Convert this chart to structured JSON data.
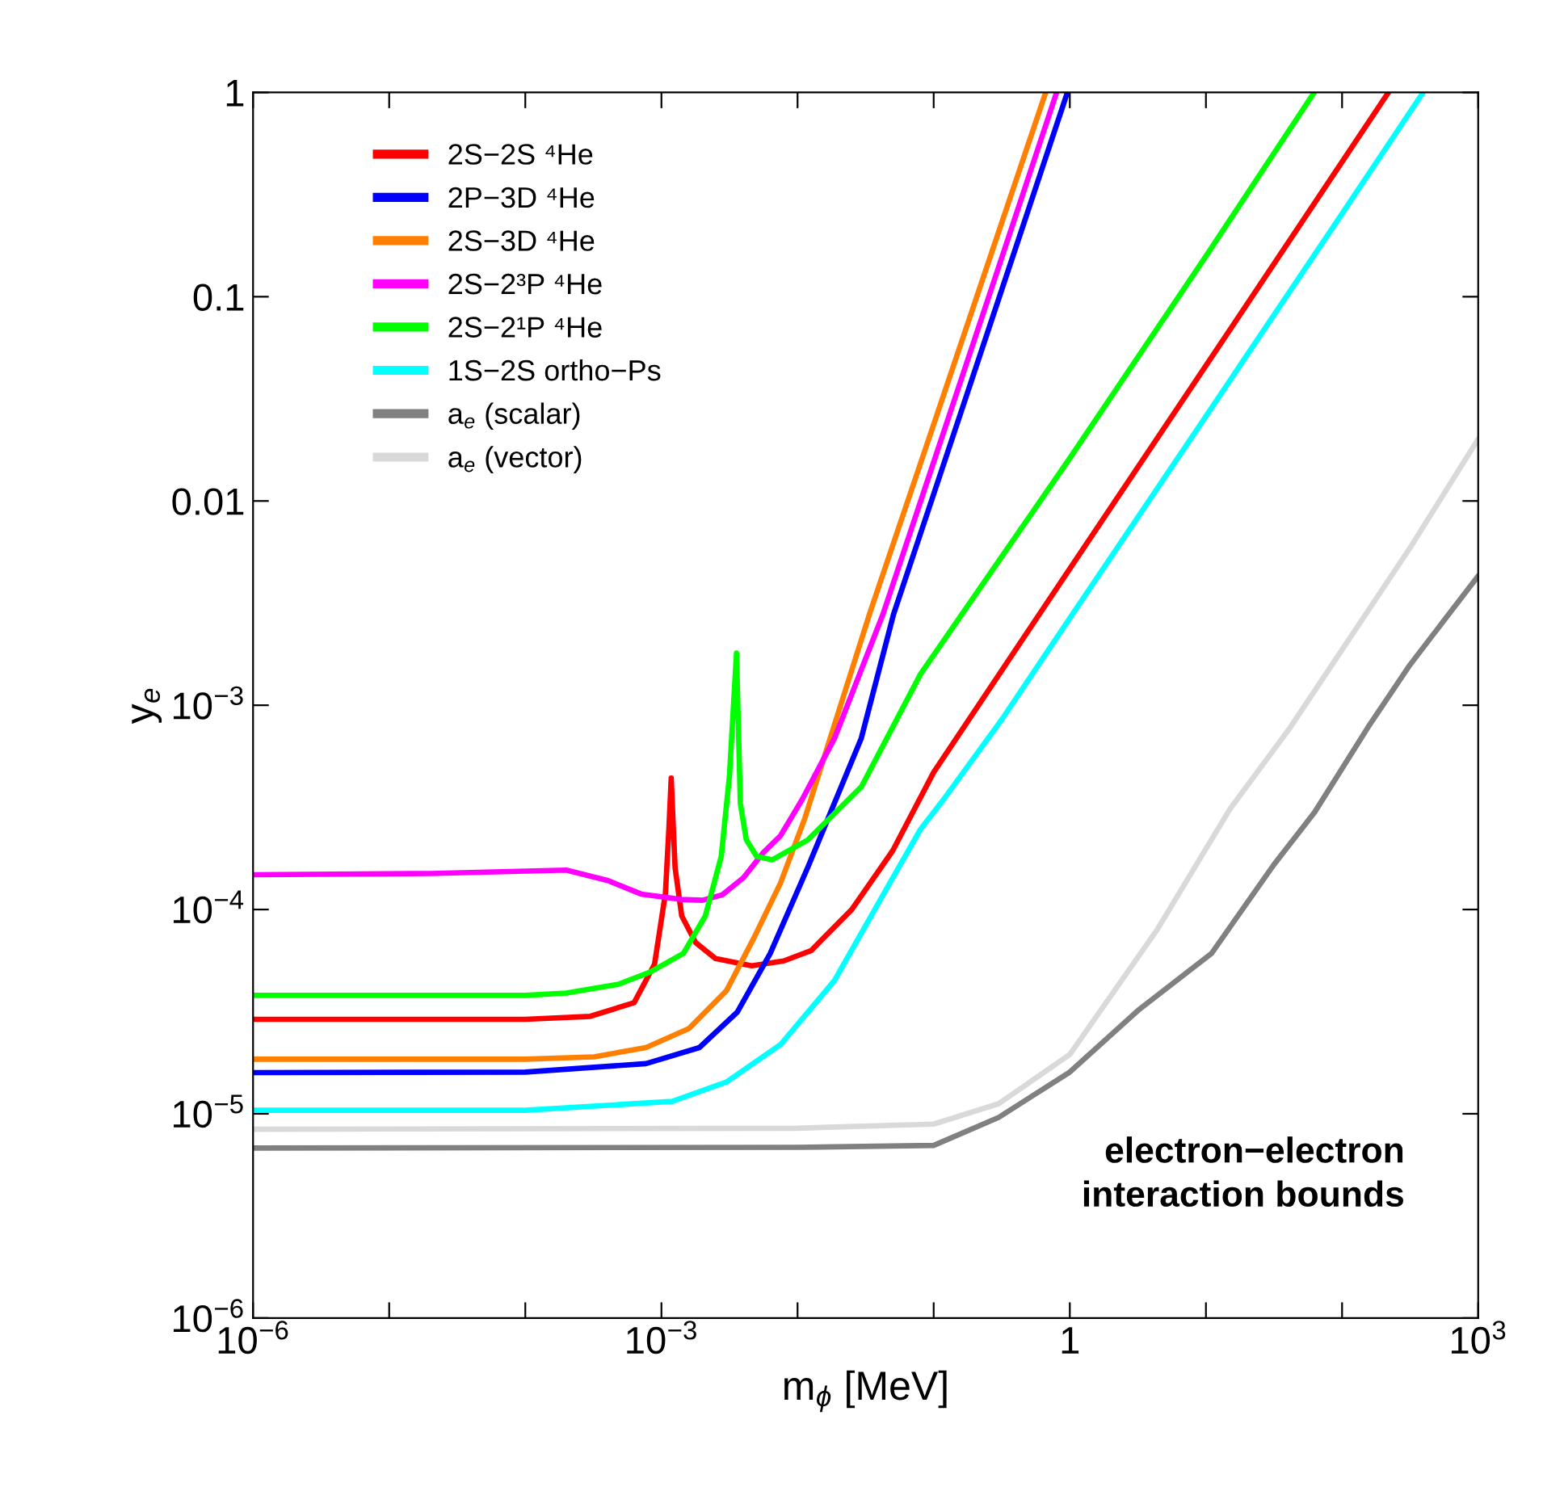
{
  "chart_data": {
    "type": "line",
    "xlabel": "m$_{ϕ}$ [MeV]",
    "ylabel": "y$_{e}$",
    "log": "xy",
    "grid": false,
    "legend": "top left",
    "marker": "none",
    "line_style": "solid",
    "xlim": [
      1e-06,
      1000
    ],
    "ylim": [
      1e-06,
      1
    ],
    "xticks": [
      {
        "value": 1e-06,
        "label": "10$^{−6}$"
      },
      {
        "value": 1e-05,
        "label": null
      },
      {
        "value": 0.0001,
        "label": null
      },
      {
        "value": 0.001,
        "label": "10$^{−3}$"
      },
      {
        "value": 0.01,
        "label": null
      },
      {
        "value": 0.1,
        "label": null
      },
      1,
      {
        "value": 10,
        "label": null
      },
      {
        "value": 100,
        "label": null
      },
      {
        "value": 1000,
        "label": "10$^{3}$"
      }
    ],
    "yticks": [
      {
        "value": 1e-06,
        "label": "10$^{−6}$"
      },
      {
        "value": 1e-05,
        "label": "10$^{−5}$"
      },
      {
        "value": 0.0001,
        "label": "10$^{−4}$"
      },
      {
        "value": 0.001,
        "label": "10$^{−3}$"
      },
      0.01,
      0.1,
      1
    ],
    "annotations": [
      "electron−electron\ninteraction bounds"
    ],
    "series": [
      {
        "name": "2S−2S ⁴He",
        "color": "#ff0000",
        "x": [
          1e-06,
          0.0001,
          0.0003,
          0.00063,
          0.00089,
          0.00107,
          0.001135,
          0.00118,
          0.00122,
          0.00126,
          0.00141,
          0.00178,
          0.0025,
          0.0046,
          0.0079,
          0.0126,
          0.025,
          0.05,
          0.1,
          1,
          10,
          100,
          219
        ],
        "values": [
          2.9e-05,
          2.9e-05,
          3e-05,
          3.5e-05,
          5.4e-05,
          0.00012,
          0.00025,
          0.00044,
          0.00026,
          0.00016,
          9.3e-05,
          6.9e-05,
          5.75e-05,
          5.3e-05,
          5.6e-05,
          6.3e-05,
          0.0001,
          0.000194,
          0.00047,
          0.00466,
          0.046,
          0.457,
          1
        ]
      },
      {
        "name": "2P−3D ⁴He",
        "color": "#0000ff",
        "x": [
          1e-06,
          0.0001,
          0.00077,
          0.0019,
          0.0036,
          0.0063,
          0.0119,
          0.0294,
          0.0508,
          0.1,
          0.316,
          0.96
        ],
        "values": [
          1.59e-05,
          1.6e-05,
          1.76e-05,
          2.11e-05,
          3.14e-05,
          6.1e-05,
          0.000161,
          0.00069,
          0.0028,
          0.0108,
          0.108,
          1
        ]
      },
      {
        "name": "2S−3D ⁴He",
        "color": "#ff7f00",
        "x": [
          1e-06,
          0.0001,
          0.00032,
          0.00077,
          0.0016,
          0.003,
          0.0048,
          0.0075,
          0.0113,
          0.0338,
          0.1,
          0.316,
          0.665
        ],
        "values": [
          1.85e-05,
          1.85e-05,
          1.9e-05,
          2.11e-05,
          2.62e-05,
          4e-05,
          7.3e-05,
          0.000135,
          0.000279,
          0.0028,
          0.0237,
          0.23,
          1
        ]
      },
      {
        "name": "2S−2³P ⁴He",
        "color": "#ff00ff",
        "x": [
          1e-06,
          2e-05,
          0.0002,
          0.0004,
          0.00071,
          0.00141,
          0.002,
          0.0028,
          0.004,
          0.0056,
          0.0075,
          0.0108,
          0.0187,
          0.0425,
          0.1,
          0.316,
          0.8
        ],
        "values": [
          0.000148,
          0.00015,
          0.000156,
          0.000139,
          0.000119,
          0.000112,
          0.000111,
          0.000118,
          0.000143,
          0.00019,
          0.00023,
          0.000345,
          0.00069,
          0.0028,
          0.0155,
          0.155,
          1
        ]
      },
      {
        "name": "2S−2¹P ⁴He",
        "color": "#00ff00",
        "x": [
          1e-06,
          0.0001,
          0.0002,
          0.00048,
          0.00083,
          0.00145,
          0.0021,
          0.00275,
          0.00316,
          0.00356,
          0.0038,
          0.0042,
          0.005,
          0.0065,
          0.0119,
          0.0295,
          0.08,
          1,
          10,
          62.4
        ],
        "values": [
          3.8e-05,
          3.8e-05,
          3.9e-05,
          4.3e-05,
          4.95e-05,
          6.1e-05,
          9.3e-05,
          0.000182,
          0.00045,
          0.0018,
          0.00033,
          0.00022,
          0.000182,
          0.000175,
          0.000219,
          0.0004,
          0.00142,
          0.0162,
          0.158,
          1
        ]
      },
      {
        "name": "1S−2S ortho−Ps",
        "color": "#00ffff",
        "x": [
          1e-06,
          0.0001,
          0.0012,
          0.003,
          0.0075,
          0.0187,
          0.0465,
          0.08,
          0.116,
          0.316,
          1,
          10,
          100,
          394
        ],
        "values": [
          1.04e-05,
          1.04e-05,
          1.15e-05,
          1.43e-05,
          2.18e-05,
          4.5e-05,
          0.000131,
          0.000247,
          0.00034,
          0.00085,
          0.00267,
          0.026,
          0.255,
          1
        ]
      },
      {
        "name": "a$_{e}$ (scalar)",
        "color": "#808080",
        "x": [
          1e-06,
          0.01,
          0.1,
          0.3,
          1,
          3.16,
          11,
          31.6,
          63,
          155,
          316,
          1000
        ],
        "values": [
          6.8e-06,
          6.85e-06,
          7e-06,
          9.6e-06,
          1.6e-05,
          3.2e-05,
          6.1e-05,
          0.000166,
          0.0003,
          0.00078,
          0.00158,
          0.0043
        ]
      },
      {
        "name": "a$_{e}$ (vector)",
        "color": "#d9d9d9",
        "x": [
          1e-06,
          0.01,
          0.1,
          0.3,
          1,
          4.4,
          15,
          41.7,
          100,
          316,
          1000
        ],
        "values": [
          8.4e-06,
          8.5e-06,
          8.9e-06,
          1.12e-05,
          1.95e-05,
          8e-05,
          0.00031,
          0.00078,
          0.00187,
          0.0059,
          0.0201
        ]
      }
    ]
  }
}
